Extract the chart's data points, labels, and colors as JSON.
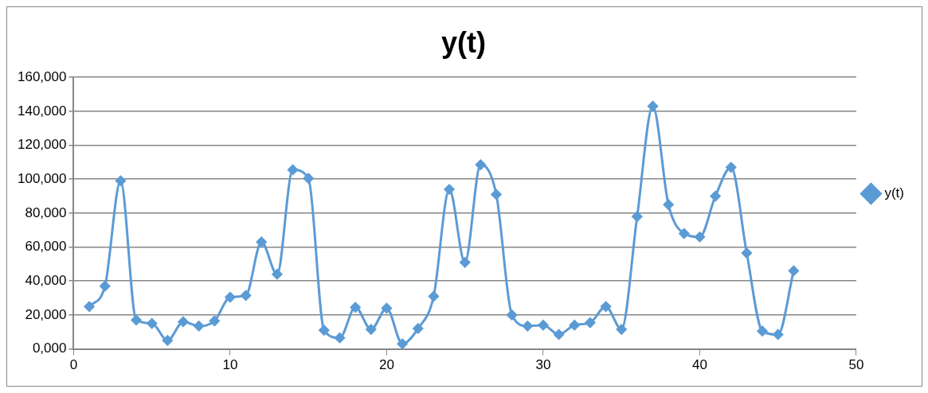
{
  "chart_data": {
    "type": "line",
    "title": "y(t)",
    "x": [
      1,
      2,
      3,
      4,
      5,
      6,
      7,
      8,
      9,
      10,
      11,
      12,
      13,
      14,
      15,
      16,
      17,
      18,
      19,
      20,
      21,
      22,
      23,
      24,
      25,
      26,
      27,
      28,
      29,
      30,
      31,
      32,
      33,
      34,
      35,
      36,
      37,
      38,
      39,
      40,
      41,
      42,
      43,
      44,
      45,
      46
    ],
    "series": [
      {
        "name": "y(t)",
        "color": "#5b9bd5",
        "values": [
          25000,
          37000,
          99000,
          17000,
          15000,
          5000,
          16000,
          13500,
          16500,
          30500,
          31500,
          63000,
          44000,
          105500,
          100500,
          11000,
          6500,
          24500,
          11500,
          24000,
          3000,
          12000,
          31000,
          94000,
          51000,
          108500,
          91000,
          20000,
          13500,
          14000,
          8500,
          14000,
          15500,
          25000,
          11500,
          78000,
          143000,
          85000,
          68000,
          66000,
          90000,
          107000,
          56500,
          10500,
          8500,
          46000
        ]
      }
    ],
    "xlim": [
      0,
      50
    ],
    "xticks": [
      0,
      10,
      20,
      30,
      40,
      50
    ],
    "ylim": [
      0,
      160000
    ],
    "yticks": [
      {
        "value": 0,
        "label": "0,000"
      },
      {
        "value": 20000,
        "label": "20,000"
      },
      {
        "value": 40000,
        "label": "40,000"
      },
      {
        "value": 60000,
        "label": "60,000"
      },
      {
        "value": 80000,
        "label": "80,000"
      },
      {
        "value": 100000,
        "label": "100,000"
      },
      {
        "value": 120000,
        "label": "120,000"
      },
      {
        "value": 140000,
        "label": "140,000"
      },
      {
        "value": 160000,
        "label": "160,000"
      }
    ],
    "grid": "y",
    "legend": "right",
    "marker": "diamond",
    "line_style": "solid"
  }
}
